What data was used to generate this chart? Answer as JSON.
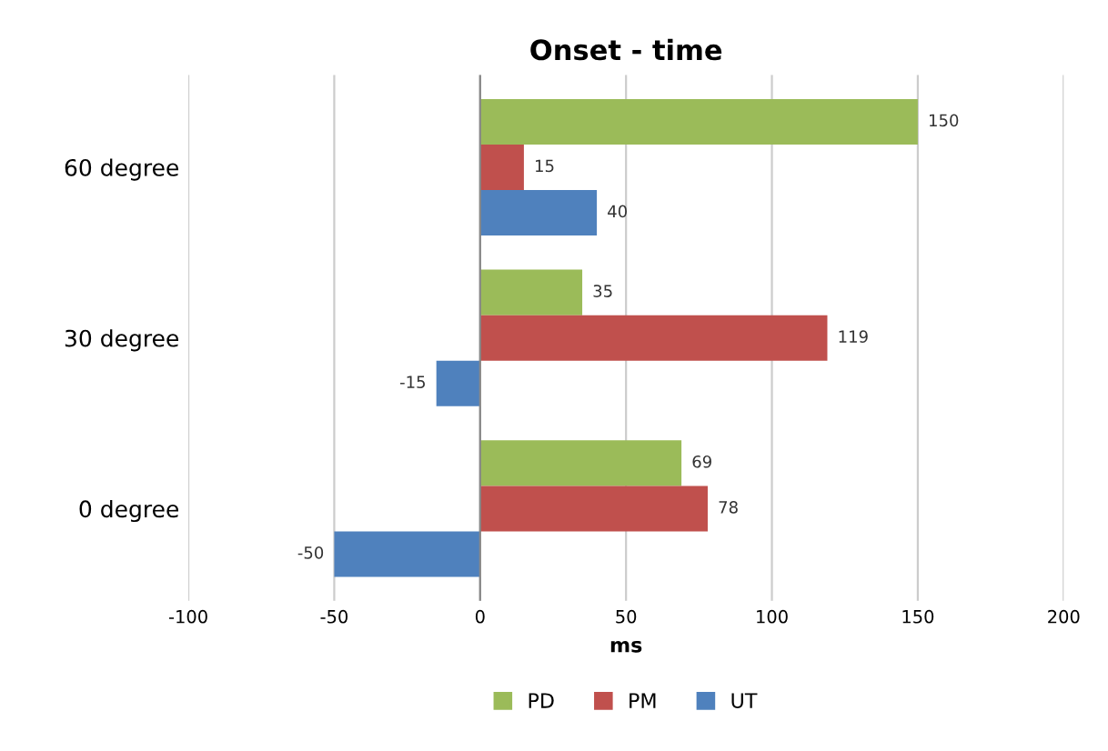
{
  "chart_data": {
    "type": "bar",
    "orientation": "horizontal",
    "title": "Onset - time",
    "xlabel": "ms",
    "categories": [
      "60 degree",
      "30 degree",
      "0 degree"
    ],
    "series": [
      {
        "name": "PD",
        "color": "#9bbb59",
        "values": [
          150,
          35,
          69
        ]
      },
      {
        "name": "PM",
        "color": "#c0504d",
        "values": [
          15,
          119,
          78
        ]
      },
      {
        "name": "UT",
        "color": "#4f81bd",
        "values": [
          40,
          -15,
          -50
        ]
      }
    ],
    "xlim": [
      -100,
      200
    ],
    "xticks": [
      -100,
      -50,
      0,
      50,
      100,
      150,
      200
    ],
    "grid": "x",
    "legend": "bottom",
    "data_labels": true
  }
}
